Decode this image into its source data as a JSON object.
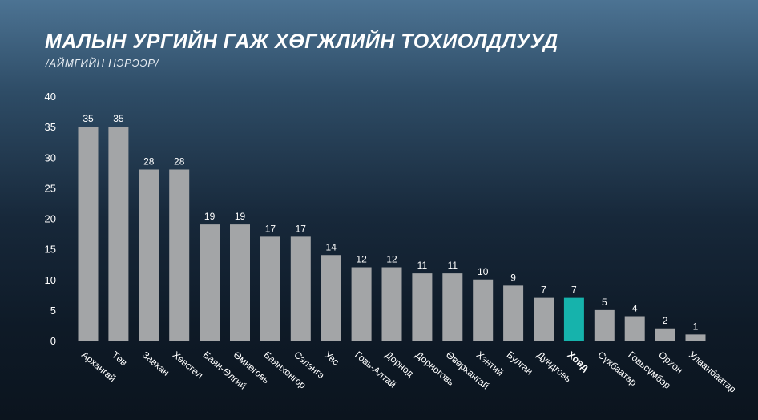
{
  "header": {
    "title": "МАЛЫН УРГИЙН ГАЖ ХӨГЖЛИЙН ТОХИОЛДЛУУД",
    "subtitle": "/АЙМГИЙН НЭРЭЭР/"
  },
  "colors": {
    "bar": "#a3a5a7",
    "highlight_bar": "#16b3ac",
    "text": "#ffffff"
  },
  "chart_data": {
    "type": "bar",
    "title": "МАЛЫН УРГИЙН ГАЖ ХӨГЖЛИЙН ТОХИОЛДЛУУД",
    "subtitle": "/АЙМГИЙН НЭРЭЭР/",
    "categories": [
      "Архангай",
      "Төв",
      "Завхан",
      "Хөвсгөл",
      "Баян-Өлгий",
      "Өмнөговь",
      "Баянхонгор",
      "Сэлэнгэ",
      "Увс",
      "Говь-Алтай",
      "Дорнод",
      "Дорноговь",
      "Өвөрхангай",
      "Хэнтий",
      "Булган",
      "Дундговь",
      "Ховд",
      "Сүхбаатар",
      "Говьсүмбэр",
      "Орхон",
      "Улаанбаатар"
    ],
    "values": [
      35,
      35,
      28,
      28,
      19,
      19,
      17,
      17,
      14,
      12,
      12,
      11,
      11,
      10,
      9,
      7,
      7,
      5,
      4,
      2,
      1
    ],
    "highlight_category": "Ховд",
    "ylim": [
      0,
      40
    ],
    "yticks": [
      0,
      5,
      10,
      15,
      20,
      25,
      30,
      35,
      40
    ],
    "grid": false,
    "legend": "none",
    "xlabel": "",
    "ylabel": ""
  }
}
